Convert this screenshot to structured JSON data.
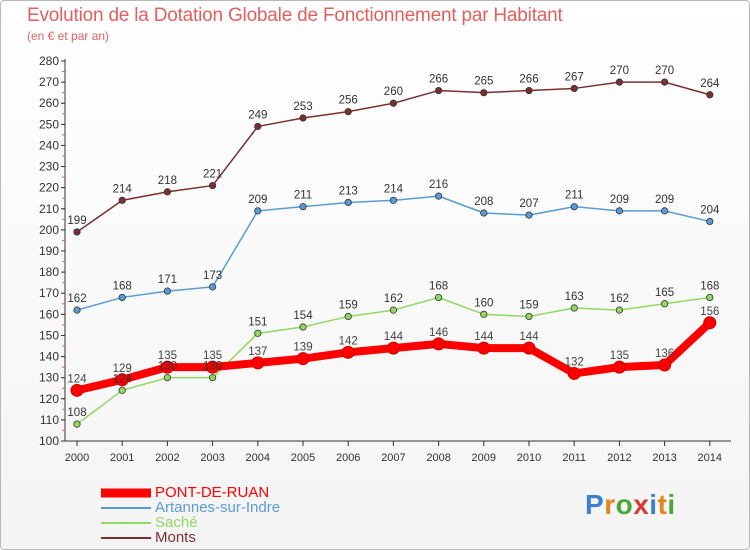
{
  "title": "Evolution de la Dotation Globale de Fonctionnement par Habitant",
  "subtitle": "(en € et par an)",
  "logo_text": "Proxiti",
  "chart_data": {
    "type": "line",
    "title": "Evolution de la Dotation Globale de Fonctionnement par Habitant",
    "subtitle": "(en € et par an)",
    "xlabel": "",
    "ylabel": "",
    "x": [
      "2000",
      "2001",
      "2002",
      "2003",
      "2004",
      "2005",
      "2006",
      "2007",
      "2008",
      "2009",
      "2010",
      "2011",
      "2012",
      "2013",
      "2014"
    ],
    "ylim": [
      100,
      280
    ],
    "yticks": [
      "100",
      "110",
      "120",
      "130",
      "140",
      "150",
      "160",
      "170",
      "180",
      "190",
      "200",
      "210",
      "220",
      "230",
      "240",
      "250",
      "260",
      "270",
      "280"
    ],
    "grid": false,
    "legend_position": "bottom-left",
    "series": [
      {
        "name": "PONT-DE-RUAN",
        "color": "#ff0000",
        "label_color": "#444444",
        "emphasis": true,
        "values": [
          124,
          129,
          135,
          135,
          137,
          139,
          142,
          144,
          146,
          144,
          144,
          132,
          135,
          136,
          156
        ]
      },
      {
        "name": "Artannes-sur-Indre",
        "color": "#5a9bd5",
        "label_color": "#333333",
        "emphasis": false,
        "values": [
          162,
          168,
          171,
          173,
          209,
          211,
          213,
          214,
          216,
          208,
          207,
          211,
          209,
          209,
          204
        ]
      },
      {
        "name": "Saché",
        "color": "#90d860",
        "label_color": "#333333",
        "emphasis": false,
        "values": [
          108,
          124,
          130,
          130,
          151,
          154,
          159,
          162,
          168,
          160,
          159,
          163,
          162,
          165,
          168
        ]
      },
      {
        "name": "Monts",
        "color": "#7a3030",
        "label_color": "#333333",
        "emphasis": false,
        "values": [
          199,
          214,
          218,
          221,
          249,
          253,
          256,
          260,
          266,
          265,
          266,
          267,
          270,
          270,
          264
        ]
      }
    ]
  }
}
